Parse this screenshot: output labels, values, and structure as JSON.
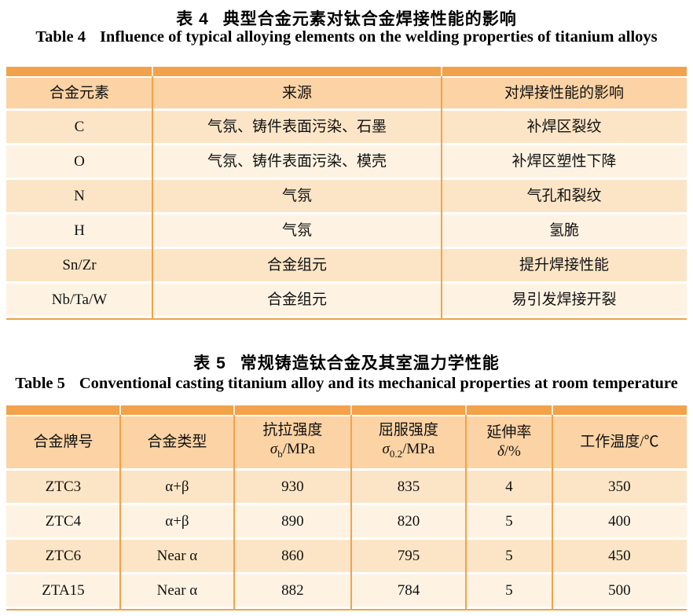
{
  "colors": {
    "accent_orange": "#F2A24A",
    "header_bg": "#FBD3A4",
    "row_odd_bg": "#FCE5C6",
    "row_even_bg": "#FEF3E3",
    "text": "#111111"
  },
  "table4": {
    "title_label_zh": "表 4",
    "title_text_zh": "典型合金元素对钛合金焊接性能的影响",
    "title_label_en": "Table 4",
    "title_text_en": "Influence of typical alloying elements on the welding properties of titanium alloys",
    "headers": [
      "合金元素",
      "来源",
      "对焊接性能的影响"
    ],
    "rows": [
      [
        "C",
        "气氛、铸件表面污染、石墨",
        "补焊区裂纹"
      ],
      [
        "O",
        "气氛、铸件表面污染、模壳",
        "补焊区塑性下降"
      ],
      [
        "N",
        "气氛",
        "气孔和裂纹"
      ],
      [
        "H",
        "气氛",
        "氢脆"
      ],
      [
        "Sn/Zr",
        "合金组元",
        "提升焊接性能"
      ],
      [
        "Nb/Ta/W",
        "合金组元",
        "易引发焊接开裂"
      ]
    ]
  },
  "table5": {
    "title_label_zh": "表 5",
    "title_text_zh": "常规铸造钛合金及其室温力学性能",
    "title_label_en": "Table 5",
    "title_text_en": "Conventional casting titanium alloy and its mechanical properties at room temperature",
    "headers": [
      {
        "t": "合金牌号"
      },
      {
        "t": "合金类型"
      },
      {
        "t": "抗拉强度",
        "sym": "σ",
        "sub": "b",
        "unit": "/MPa"
      },
      {
        "t": "屈服强度",
        "sym": "σ",
        "sub": "0.2",
        "unit": "/MPa"
      },
      {
        "t": "延伸率",
        "sym": "δ",
        "unit": "/%"
      },
      {
        "t": "工作温度/℃"
      }
    ],
    "rows": [
      [
        "ZTC3",
        "α+β",
        "930",
        "835",
        "4",
        "350"
      ],
      [
        "ZTC4",
        "α+β",
        "890",
        "820",
        "5",
        "400"
      ],
      [
        "ZTC6",
        "Near α",
        "860",
        "795",
        "5",
        "450"
      ],
      [
        "ZTA15",
        "Near α",
        "882",
        "784",
        "5",
        "500"
      ]
    ]
  }
}
